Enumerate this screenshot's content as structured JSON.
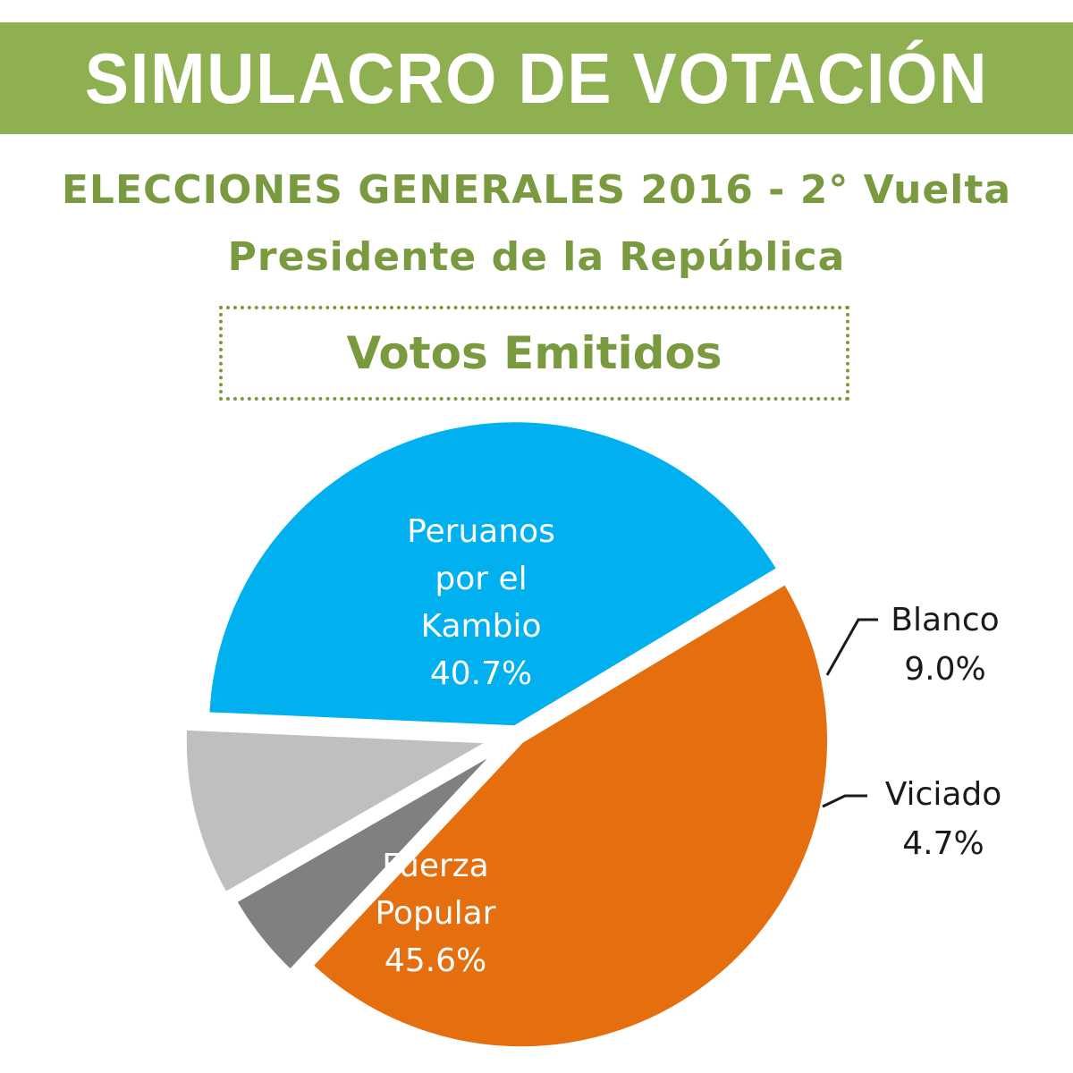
{
  "header": {
    "title": "SIMULACRO DE VOTACIÓN",
    "subtitle_line1": "ELECCIONES GENERALES 2016 - 2° Vuelta",
    "subtitle_line2": "Presidente de la República",
    "box_label": "Votos Emitidos"
  },
  "colors": {
    "banner": "#8fb050",
    "accent_text": "#7a9a40"
  },
  "chart_data": {
    "type": "pie",
    "title": "Votos Emitidos",
    "slices": [
      {
        "label_lines": [
          "Peruanos",
          "por el",
          "Kambio"
        ],
        "pct_label": "40.7%",
        "value": 40.7,
        "color": "#00b0ef"
      },
      {
        "label_lines": [
          "Blanco"
        ],
        "pct_label": "9.0%",
        "value": 9.0,
        "color": "#bfbfbf"
      },
      {
        "label_lines": [
          "Viciado"
        ],
        "pct_label": "4.7%",
        "value": 4.7,
        "color": "#808080"
      },
      {
        "label_lines": [
          "Fuerza",
          "Popular"
        ],
        "pct_label": "45.6%",
        "value": 45.6,
        "color": "#e56e0e"
      }
    ]
  }
}
